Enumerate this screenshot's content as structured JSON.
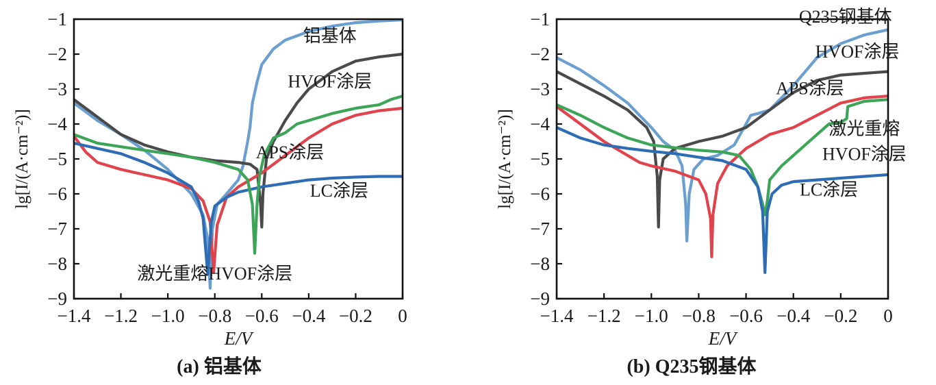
{
  "chart_data": [
    {
      "type": "line",
      "caption": "(a) 铝基体",
      "xlabel": "E/V",
      "ylabel": "lg[I/(A·cm⁻²)]",
      "xlim": [
        -1.4,
        0
      ],
      "ylim": [
        -9,
        -1
      ],
      "xticks": [
        "−1.4",
        "−1.2",
        "−1.0",
        "−0.8",
        "−0.6",
        "−0.4",
        "−0.2",
        "0"
      ],
      "yticks": [
        "−1",
        "−2",
        "−3",
        "−4",
        "−5",
        "−6",
        "−7",
        "−8",
        "−9"
      ],
      "series": [
        {
          "name": "铝基体",
          "color": "#6a9fcf",
          "points": [
            [
              -1.4,
              -3.4
            ],
            [
              -1.3,
              -3.9
            ],
            [
              -1.2,
              -4.3
            ],
            [
              -1.1,
              -4.75
            ],
            [
              -1.0,
              -5.3
            ],
            [
              -0.9,
              -6.0
            ],
            [
              -0.85,
              -6.6
            ],
            [
              -0.83,
              -7.3
            ],
            [
              -0.82,
              -8.7
            ],
            [
              -0.81,
              -7.0
            ],
            [
              -0.79,
              -6.3
            ],
            [
              -0.75,
              -6.0
            ],
            [
              -0.7,
              -5.6
            ],
            [
              -0.68,
              -5.2
            ],
            [
              -0.66,
              -4.5
            ],
            [
              -0.65,
              -4.1
            ],
            [
              -0.64,
              -3.4
            ],
            [
              -0.62,
              -2.8
            ],
            [
              -0.6,
              -2.3
            ],
            [
              -0.55,
              -1.85
            ],
            [
              -0.5,
              -1.6
            ],
            [
              -0.4,
              -1.35
            ],
            [
              -0.3,
              -1.2
            ],
            [
              -0.2,
              -1.1
            ],
            [
              -0.1,
              -1.05
            ],
            [
              0,
              -1.02
            ]
          ],
          "label": {
            "text": "铝基体",
            "x": -0.31,
            "y": -1.65
          }
        },
        {
          "name": "HVOF涂层",
          "color": "#4a4a4a",
          "points": [
            [
              -1.4,
              -3.3
            ],
            [
              -1.3,
              -3.8
            ],
            [
              -1.2,
              -4.3
            ],
            [
              -1.1,
              -4.6
            ],
            [
              -1.0,
              -4.8
            ],
            [
              -0.9,
              -4.95
            ],
            [
              -0.8,
              -5.05
            ],
            [
              -0.7,
              -5.1
            ],
            [
              -0.65,
              -5.15
            ],
            [
              -0.62,
              -5.3
            ],
            [
              -0.605,
              -6.3
            ],
            [
              -0.6,
              -6.95
            ],
            [
              -0.595,
              -6.0
            ],
            [
              -0.58,
              -5.0
            ],
            [
              -0.55,
              -4.5
            ],
            [
              -0.5,
              -3.9
            ],
            [
              -0.45,
              -3.4
            ],
            [
              -0.4,
              -3.0
            ],
            [
              -0.3,
              -2.5
            ],
            [
              -0.2,
              -2.2
            ],
            [
              -0.1,
              -2.08
            ],
            [
              0,
              -2.0
            ]
          ],
          "label": {
            "text": "HVOF涂层",
            "x": -0.31,
            "y": -2.95
          }
        },
        {
          "name": "APS涂层",
          "color": "#e0434b",
          "points": [
            [
              -1.4,
              -4.35
            ],
            [
              -1.35,
              -4.8
            ],
            [
              -1.3,
              -5.1
            ],
            [
              -1.2,
              -5.3
            ],
            [
              -1.1,
              -5.45
            ],
            [
              -1.0,
              -5.6
            ],
            [
              -0.9,
              -5.85
            ],
            [
              -0.85,
              -6.2
            ],
            [
              -0.82,
              -6.8
            ],
            [
              -0.805,
              -8.25
            ],
            [
              -0.79,
              -6.9
            ],
            [
              -0.75,
              -6.1
            ],
            [
              -0.7,
              -5.8
            ],
            [
              -0.6,
              -5.4
            ],
            [
              -0.5,
              -4.9
            ],
            [
              -0.4,
              -4.4
            ],
            [
              -0.3,
              -4.0
            ],
            [
              -0.2,
              -3.75
            ],
            [
              -0.1,
              -3.62
            ],
            [
              0,
              -3.55
            ]
          ],
          "label": {
            "text": "APS涂层",
            "x": -0.48,
            "y": -4.98
          }
        },
        {
          "name": "LC涂层",
          "color": "#2e6cb4",
          "points": [
            [
              -1.4,
              -4.55
            ],
            [
              -1.3,
              -4.7
            ],
            [
              -1.2,
              -4.85
            ],
            [
              -1.1,
              -5.1
            ],
            [
              -1.0,
              -5.4
            ],
            [
              -0.9,
              -5.8
            ],
            [
              -0.87,
              -6.2
            ],
            [
              -0.85,
              -6.7
            ],
            [
              -0.83,
              -8.3
            ],
            [
              -0.815,
              -6.8
            ],
            [
              -0.8,
              -6.35
            ],
            [
              -0.75,
              -6.1
            ],
            [
              -0.7,
              -5.95
            ],
            [
              -0.6,
              -5.8
            ],
            [
              -0.5,
              -5.7
            ],
            [
              -0.4,
              -5.6
            ],
            [
              -0.3,
              -5.55
            ],
            [
              -0.2,
              -5.52
            ],
            [
              -0.1,
              -5.5
            ],
            [
              0,
              -5.5
            ]
          ],
          "label": {
            "text": "LC涂层",
            "x": -0.27,
            "y": -6.08
          }
        },
        {
          "name": "激光重熔HVOF涂层",
          "color": "#3ca558",
          "points": [
            [
              -1.4,
              -4.3
            ],
            [
              -1.3,
              -4.55
            ],
            [
              -1.2,
              -4.65
            ],
            [
              -1.1,
              -4.75
            ],
            [
              -1.0,
              -4.85
            ],
            [
              -0.9,
              -4.95
            ],
            [
              -0.8,
              -5.1
            ],
            [
              -0.7,
              -5.3
            ],
            [
              -0.66,
              -5.6
            ],
            [
              -0.64,
              -6.3
            ],
            [
              -0.63,
              -7.7
            ],
            [
              -0.62,
              -6.3
            ],
            [
              -0.61,
              -5.5
            ],
            [
              -0.59,
              -4.9
            ],
            [
              -0.55,
              -4.4
            ],
            [
              -0.5,
              -4.25
            ],
            [
              -0.45,
              -4.0
            ],
            [
              -0.4,
              -3.9
            ],
            [
              -0.3,
              -3.7
            ],
            [
              -0.2,
              -3.55
            ],
            [
              -0.1,
              -3.45
            ],
            [
              -0.05,
              -3.3
            ],
            [
              0,
              -3.2
            ]
          ],
          "label": {
            "text": "激光重熔HVOF涂层",
            "x": -0.8,
            "y": -8.45
          }
        }
      ]
    },
    {
      "type": "line",
      "caption": "(b) Q235钢基体",
      "xlabel": "E/V",
      "ylabel": "lg[I/(A·cm⁻²)]",
      "xlim": [
        -1.4,
        0
      ],
      "ylim": [
        -9,
        -1
      ],
      "xticks": [
        "−1.4",
        "−1.2",
        "−1.0",
        "−0.8",
        "−0.6",
        "−0.4",
        "−0.2",
        "0"
      ],
      "yticks": [
        "−1",
        "−2",
        "−3",
        "−4",
        "−5",
        "−6",
        "−7",
        "−8",
        "−9"
      ],
      "series": [
        {
          "name": "Q235钢基体",
          "color": "#6a9fcf",
          "points": [
            [
              -1.4,
              -2.1
            ],
            [
              -1.3,
              -2.45
            ],
            [
              -1.2,
              -2.9
            ],
            [
              -1.1,
              -3.4
            ],
            [
              -1.0,
              -4.1
            ],
            [
              -0.95,
              -4.5
            ],
            [
              -0.9,
              -4.75
            ],
            [
              -0.87,
              -5.2
            ],
            [
              -0.855,
              -6.3
            ],
            [
              -0.85,
              -7.35
            ],
            [
              -0.84,
              -6.0
            ],
            [
              -0.82,
              -5.3
            ],
            [
              -0.78,
              -5.0
            ],
            [
              -0.72,
              -4.9
            ],
            [
              -0.65,
              -4.6
            ],
            [
              -0.6,
              -4.0
            ],
            [
              -0.58,
              -3.75
            ],
            [
              -0.55,
              -3.7
            ],
            [
              -0.5,
              -3.6
            ],
            [
              -0.4,
              -2.9
            ],
            [
              -0.3,
              -2.1
            ],
            [
              -0.2,
              -1.7
            ],
            [
              -0.1,
              -1.45
            ],
            [
              0,
              -1.3
            ]
          ],
          "label": {
            "text": "Q235钢基体",
            "x": -0.18,
            "y": -1.1
          }
        },
        {
          "name": "HVOF涂层",
          "color": "#4a4a4a",
          "points": [
            [
              -1.4,
              -2.5
            ],
            [
              -1.3,
              -2.85
            ],
            [
              -1.2,
              -3.2
            ],
            [
              -1.1,
              -3.6
            ],
            [
              -1.02,
              -4.1
            ],
            [
              -0.99,
              -4.5
            ],
            [
              -0.975,
              -5.5
            ],
            [
              -0.97,
              -6.95
            ],
            [
              -0.965,
              -5.6
            ],
            [
              -0.95,
              -5.0
            ],
            [
              -0.9,
              -4.7
            ],
            [
              -0.8,
              -4.5
            ],
            [
              -0.7,
              -4.35
            ],
            [
              -0.6,
              -4.1
            ],
            [
              -0.5,
              -3.6
            ],
            [
              -0.4,
              -3.1
            ],
            [
              -0.3,
              -2.75
            ],
            [
              -0.2,
              -2.6
            ],
            [
              -0.1,
              -2.55
            ],
            [
              0,
              -2.5
            ]
          ],
          "label": {
            "text": "HVOF涂层",
            "x": -0.13,
            "y": -2.1
          }
        },
        {
          "name": "APS涂层",
          "color": "#e0434b",
          "points": [
            [
              -1.4,
              -3.5
            ],
            [
              -1.3,
              -4.0
            ],
            [
              -1.2,
              -4.5
            ],
            [
              -1.1,
              -4.9
            ],
            [
              -1.05,
              -5.1
            ],
            [
              -1.0,
              -5.2
            ],
            [
              -0.9,
              -5.35
            ],
            [
              -0.8,
              -5.6
            ],
            [
              -0.77,
              -6.0
            ],
            [
              -0.75,
              -6.7
            ],
            [
              -0.745,
              -7.8
            ],
            [
              -0.74,
              -6.6
            ],
            [
              -0.72,
              -5.7
            ],
            [
              -0.68,
              -5.2
            ],
            [
              -0.6,
              -4.7
            ],
            [
              -0.5,
              -4.3
            ],
            [
              -0.4,
              -4.1
            ],
            [
              -0.3,
              -3.75
            ],
            [
              -0.2,
              -3.4
            ],
            [
              -0.1,
              -3.25
            ],
            [
              0,
              -3.2
            ]
          ],
          "label": {
            "text": "APS涂层",
            "x": -0.33,
            "y": -3.15
          }
        },
        {
          "name": "激光重熔HVOF涂层",
          "color": "#3ca558",
          "points": [
            [
              -1.4,
              -3.45
            ],
            [
              -1.3,
              -3.75
            ],
            [
              -1.2,
              -4.1
            ],
            [
              -1.1,
              -4.4
            ],
            [
              -1.0,
              -4.6
            ],
            [
              -0.9,
              -4.68
            ],
            [
              -0.8,
              -4.75
            ],
            [
              -0.7,
              -4.8
            ],
            [
              -0.63,
              -4.9
            ],
            [
              -0.58,
              -5.3
            ],
            [
              -0.55,
              -5.8
            ],
            [
              -0.53,
              -6.3
            ],
            [
              -0.52,
              -6.6
            ],
            [
              -0.51,
              -6.2
            ],
            [
              -0.5,
              -5.6
            ],
            [
              -0.45,
              -5.2
            ],
            [
              -0.4,
              -4.9
            ],
            [
              -0.35,
              -4.6
            ],
            [
              -0.3,
              -4.3
            ],
            [
              -0.25,
              -4.0
            ],
            [
              -0.2,
              -3.95
            ],
            [
              -0.175,
              -3.85
            ],
            [
              -0.17,
              -3.5
            ],
            [
              -0.1,
              -3.35
            ],
            [
              0,
              -3.3
            ]
          ],
          "label": {
            "text": "激光重熔",
            "x": -0.1,
            "y": -4.3
          }
        },
        {
          "name": "LC涂层",
          "color": "#2e6cb4",
          "points": [
            [
              -1.4,
              -4.1
            ],
            [
              -1.3,
              -4.4
            ],
            [
              -1.2,
              -4.6
            ],
            [
              -1.1,
              -4.7
            ],
            [
              -1.0,
              -4.78
            ],
            [
              -0.9,
              -4.85
            ],
            [
              -0.8,
              -4.95
            ],
            [
              -0.7,
              -5.05
            ],
            [
              -0.6,
              -5.3
            ],
            [
              -0.55,
              -5.8
            ],
            [
              -0.53,
              -6.5
            ],
            [
              -0.52,
              -8.25
            ],
            [
              -0.51,
              -6.5
            ],
            [
              -0.49,
              -6.0
            ],
            [
              -0.45,
              -5.75
            ],
            [
              -0.4,
              -5.65
            ],
            [
              -0.3,
              -5.6
            ],
            [
              -0.2,
              -5.55
            ],
            [
              -0.1,
              -5.5
            ],
            [
              0,
              -5.45
            ]
          ],
          "label": {
            "text": "LC涂层",
            "x": -0.25,
            "y": -6.05
          }
        }
      ],
      "extra_labels": [
        {
          "text": "HVOF涂层",
          "x": -0.1,
          "y": -5.03
        }
      ]
    }
  ]
}
